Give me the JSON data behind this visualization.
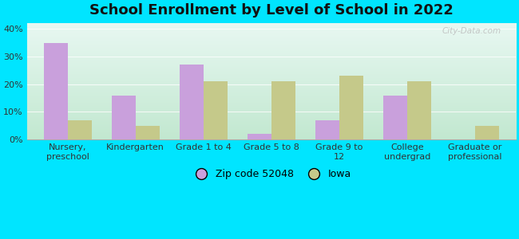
{
  "title": "School Enrollment by Level of School in 2022",
  "categories": [
    "Nursery,\npreschool",
    "Kindergarten",
    "Grade 1 to 4",
    "Grade 5 to 8",
    "Grade 9 to\n12",
    "College\nundergrad",
    "Graduate or\nprofessional"
  ],
  "zip_values": [
    35.0,
    16.0,
    27.0,
    2.0,
    7.0,
    16.0,
    0.0
  ],
  "iowa_values": [
    7.0,
    5.0,
    21.0,
    21.0,
    23.0,
    21.0,
    5.0
  ],
  "zip_color": "#c9a0dc",
  "iowa_color": "#c5c98a",
  "background_outer": "#00e5ff",
  "background_inner_topleft": "#d8f5e0",
  "background_inner_topright": "#e8f8f0",
  "background_inner_bottom": "#c8edd8",
  "ylim": [
    0,
    42
  ],
  "yticks": [
    0,
    10,
    20,
    30,
    40
  ],
  "ytick_labels": [
    "0%",
    "10%",
    "20%",
    "30%",
    "40%"
  ],
  "legend_zip_label": "Zip code 52048",
  "legend_iowa_label": "Iowa",
  "watermark": "City-Data.com",
  "bar_width": 0.35,
  "title_fontsize": 13,
  "tick_fontsize": 8,
  "legend_fontsize": 9
}
